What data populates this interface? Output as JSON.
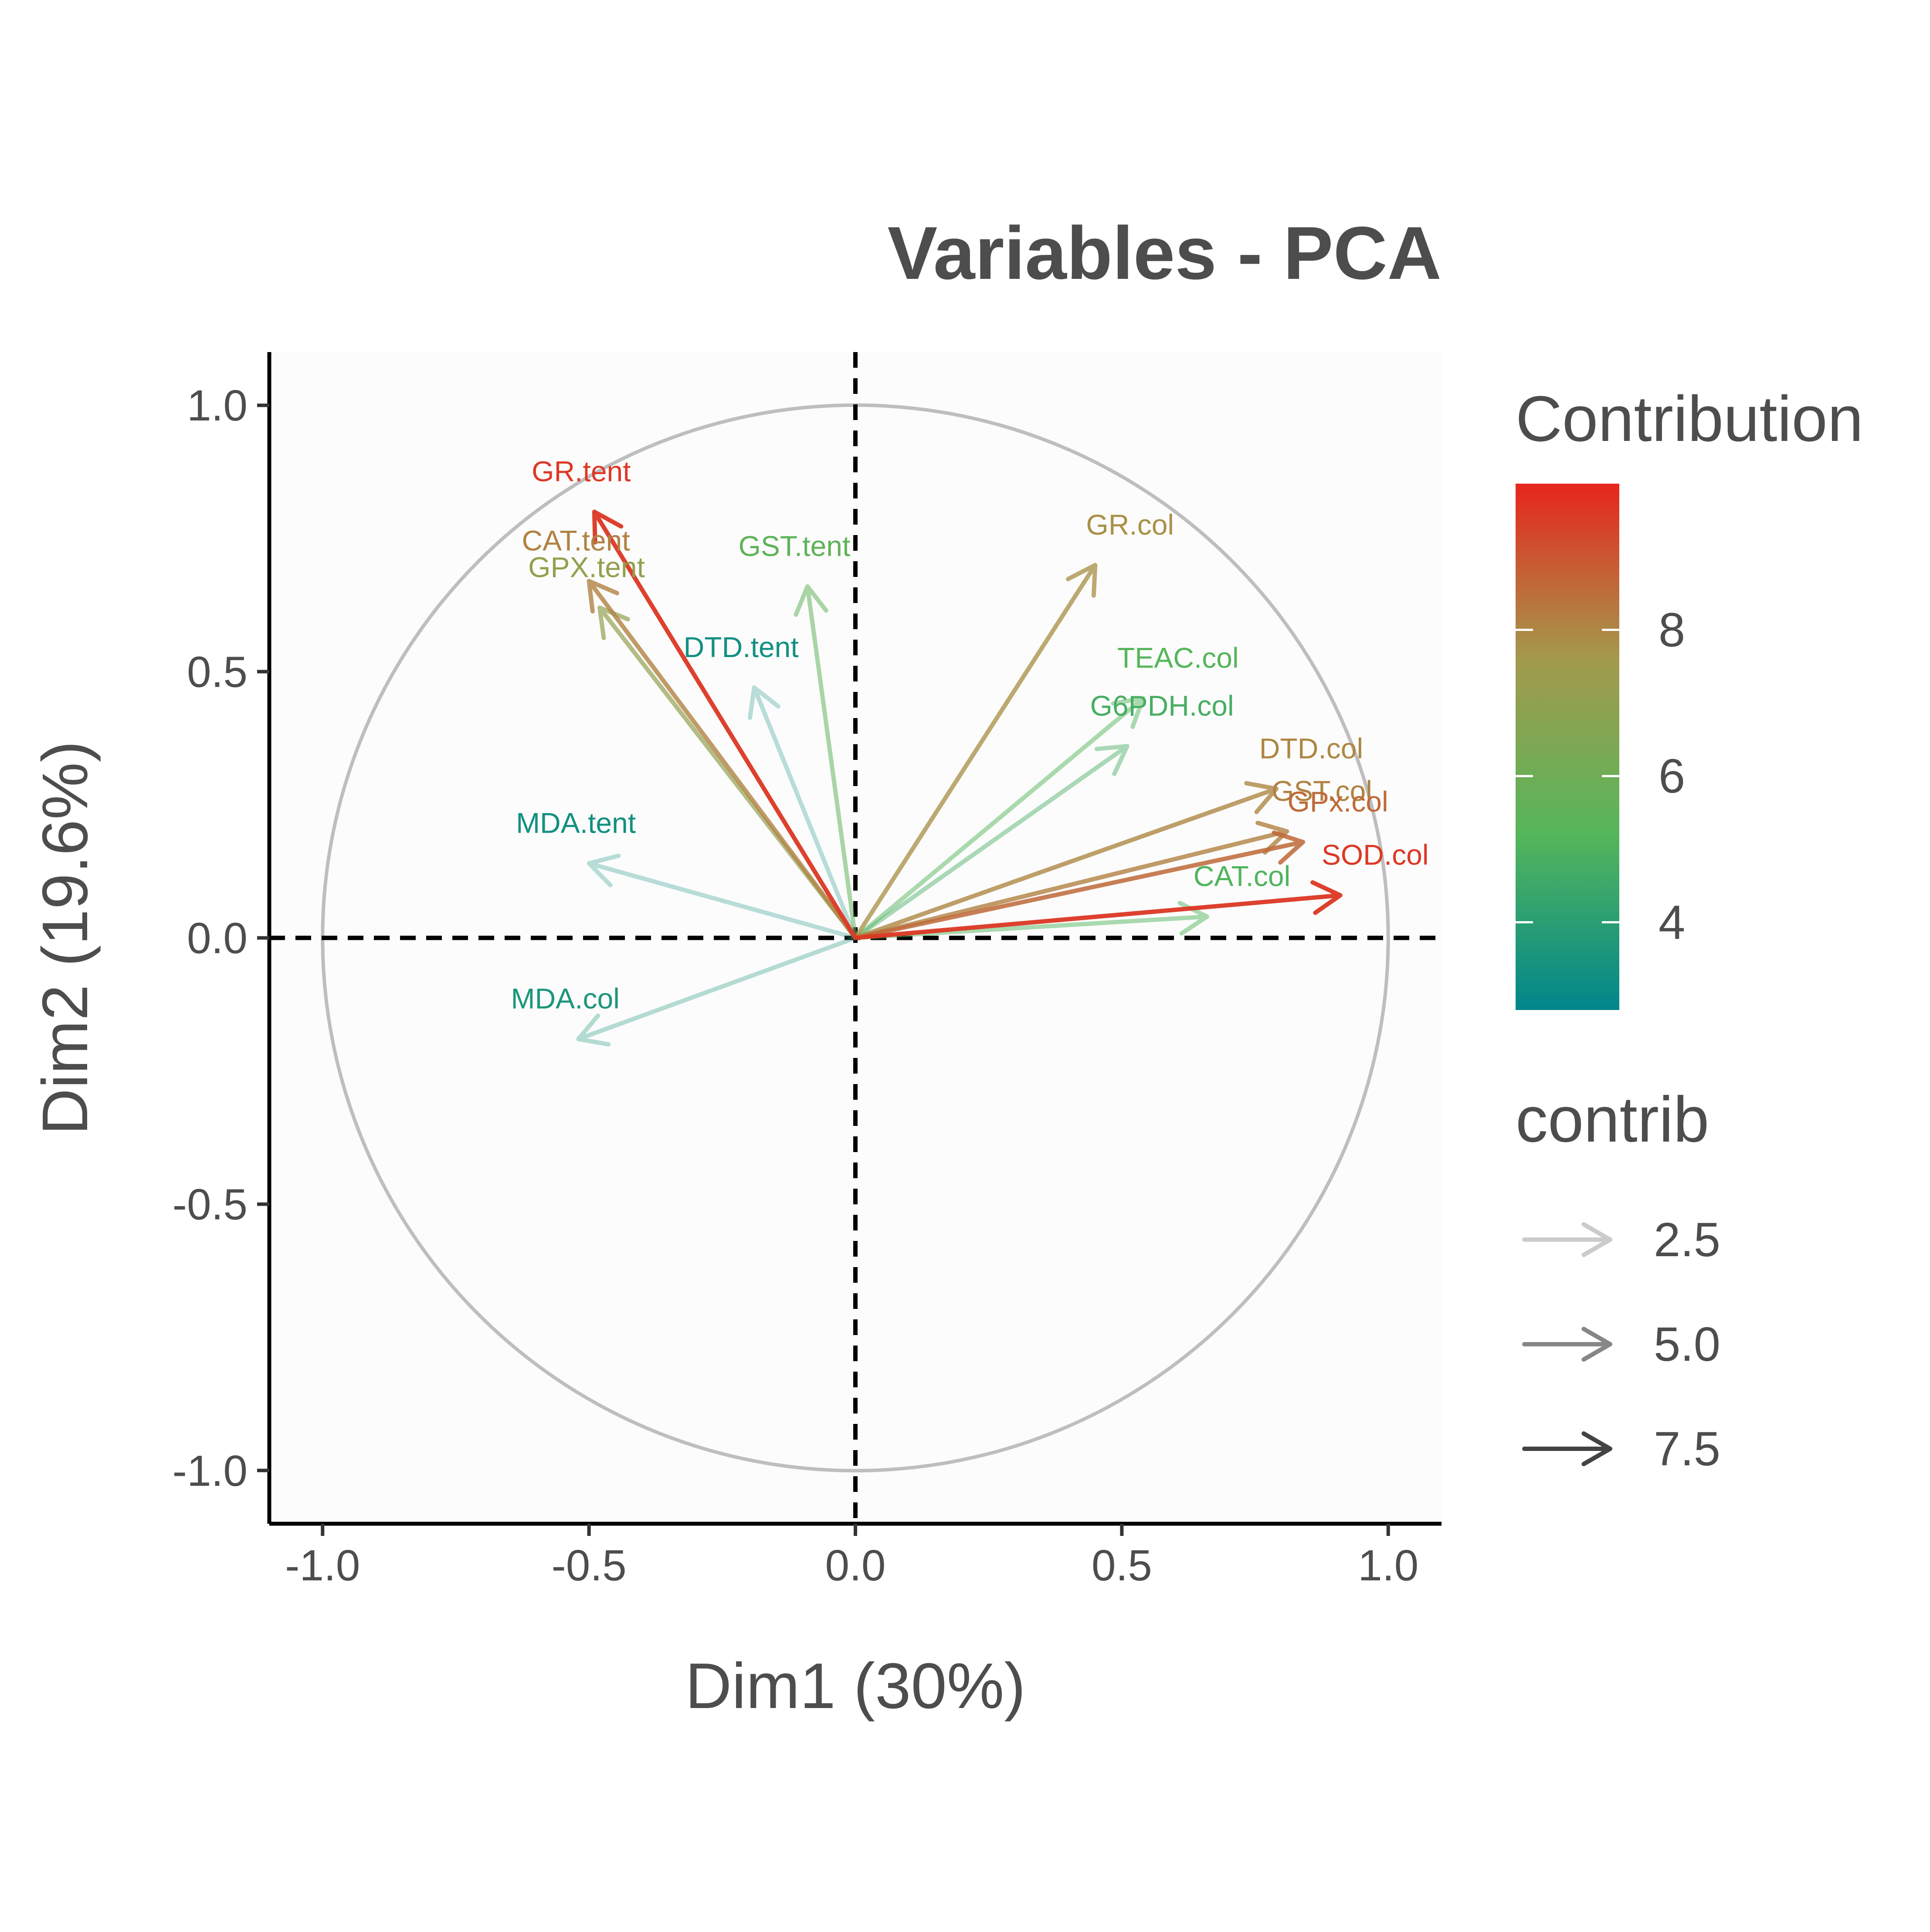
{
  "chart_data": {
    "type": "pca-variable-correlation-circle",
    "title": "Variables - PCA",
    "xlabel": "Dim1 (30%)",
    "ylabel": "Dim2 (19.6%)",
    "xlim": [
      -1.1,
      1.1
    ],
    "ylim": [
      -1.1,
      1.1
    ],
    "x_ticks": [
      -1.0,
      -0.5,
      0.0,
      0.5,
      1.0
    ],
    "y_ticks": [
      -1.0,
      -0.5,
      0.0,
      0.5,
      1.0
    ],
    "x_tick_labels": [
      "-1.0",
      "-0.5",
      "0.0",
      "0.5",
      "1.0"
    ],
    "y_tick_labels": [
      "-1.0",
      "-0.5",
      "0.0",
      "0.5",
      "1.0"
    ],
    "grid": false,
    "unit_circle": true,
    "reference_lines": [
      0,
      0
    ],
    "variables": [
      {
        "name": "GR.tent",
        "x": -0.49,
        "y": 0.8,
        "contrib": 9.6
      },
      {
        "name": "CAT.tent",
        "x": -0.5,
        "y": 0.67,
        "contrib": 8.1
      },
      {
        "name": "GPX.tent",
        "x": -0.48,
        "y": 0.62,
        "contrib": 7.1
      },
      {
        "name": "GST.tent",
        "x": -0.09,
        "y": 0.66,
        "contrib": 5.5
      },
      {
        "name": "DTD.tent",
        "x": -0.19,
        "y": 0.47,
        "contrib": 3.3
      },
      {
        "name": "MDA.tent",
        "x": -0.5,
        "y": 0.14,
        "contrib": 3.3
      },
      {
        "name": "MDA.col",
        "x": -0.52,
        "y": -0.19,
        "contrib": 3.6
      },
      {
        "name": "GR.col",
        "x": 0.45,
        "y": 0.7,
        "contrib": 7.8
      },
      {
        "name": "TEAC.col",
        "x": 0.54,
        "y": 0.45,
        "contrib": 5.2
      },
      {
        "name": "G6PDH.col",
        "x": 0.51,
        "y": 0.36,
        "contrib": 4.8
      },
      {
        "name": "DTD.col",
        "x": 0.79,
        "y": 0.28,
        "contrib": 8.0
      },
      {
        "name": "GST.col",
        "x": 0.81,
        "y": 0.2,
        "contrib": 8.1
      },
      {
        "name": "GPx.col",
        "x": 0.84,
        "y": 0.18,
        "contrib": 8.6
      },
      {
        "name": "SOD.col",
        "x": 0.91,
        "y": 0.08,
        "contrib": 9.6
      },
      {
        "name": "CAT.col",
        "x": 0.66,
        "y": 0.04,
        "contrib": 5.1
      }
    ],
    "legend": {
      "placement": "right",
      "color_title": "Contribution",
      "color_range": [
        2.8,
        10.0
      ],
      "color_ticks": [
        4,
        6,
        8
      ],
      "color_tick_labels": [
        "4",
        "6",
        "8"
      ],
      "colors": [
        "#00868B",
        "#55B65B",
        "#A39A4C",
        "#E7251D"
      ],
      "alpha_title": "contrib",
      "alpha_entries": [
        {
          "label": "2.5",
          "value": 2.5
        },
        {
          "label": "5.0",
          "value": 5.0
        },
        {
          "label": "7.5",
          "value": 7.5
        }
      ]
    }
  }
}
